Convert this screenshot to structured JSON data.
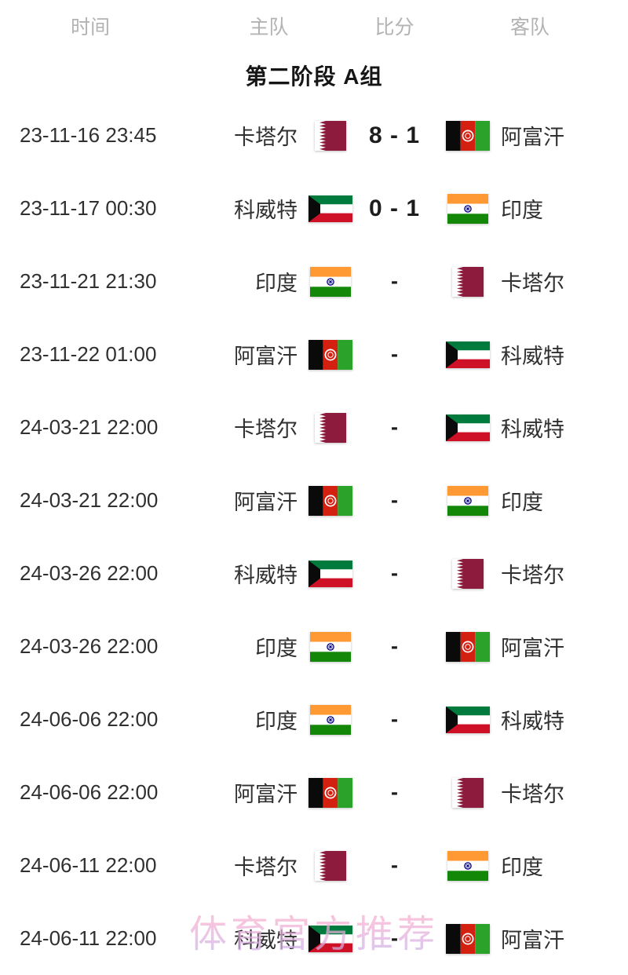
{
  "headers": {
    "time": "时间",
    "home": "主队",
    "score": "比分",
    "away": "客队"
  },
  "group_title": "第二阶段 A组",
  "watermark": "体育官方推荐",
  "matches": [
    {
      "time": "23-11-16 23:45",
      "home": "卡塔尔",
      "home_flag": "qatar",
      "score": "8 - 1",
      "away": "阿富汗",
      "away_flag": "afghanistan"
    },
    {
      "time": "23-11-17 00:30",
      "home": "科威特",
      "home_flag": "kuwait",
      "score": "0 - 1",
      "away": "印度",
      "away_flag": "india"
    },
    {
      "time": "23-11-21 21:30",
      "home": "印度",
      "home_flag": "india",
      "score": "-",
      "away": "卡塔尔",
      "away_flag": "qatar"
    },
    {
      "time": "23-11-22 01:00",
      "home": "阿富汗",
      "home_flag": "afghanistan",
      "score": "-",
      "away": "科威特",
      "away_flag": "kuwait"
    },
    {
      "time": "24-03-21 22:00",
      "home": "卡塔尔",
      "home_flag": "qatar",
      "score": "-",
      "away": "科威特",
      "away_flag": "kuwait"
    },
    {
      "time": "24-03-21 22:00",
      "home": "阿富汗",
      "home_flag": "afghanistan",
      "score": "-",
      "away": "印度",
      "away_flag": "india"
    },
    {
      "time": "24-03-26 22:00",
      "home": "科威特",
      "home_flag": "kuwait",
      "score": "-",
      "away": "卡塔尔",
      "away_flag": "qatar"
    },
    {
      "time": "24-03-26 22:00",
      "home": "印度",
      "home_flag": "india",
      "score": "-",
      "away": "阿富汗",
      "away_flag": "afghanistan"
    },
    {
      "time": "24-06-06 22:00",
      "home": "印度",
      "home_flag": "india",
      "score": "-",
      "away": "科威特",
      "away_flag": "kuwait"
    },
    {
      "time": "24-06-06 22:00",
      "home": "阿富汗",
      "home_flag": "afghanistan",
      "score": "-",
      "away": "卡塔尔",
      "away_flag": "qatar"
    },
    {
      "time": "24-06-11 22:00",
      "home": "卡塔尔",
      "home_flag": "qatar",
      "score": "-",
      "away": "印度",
      "away_flag": "india"
    },
    {
      "time": "24-06-11 22:00",
      "home": "科威特",
      "home_flag": "kuwait",
      "score": "-",
      "away": "阿富汗",
      "away_flag": "afghanistan"
    }
  ],
  "colors": {
    "header_text": "#b3b3b3",
    "title_text": "#161616",
    "row_text": "#303030",
    "score_text": "#1c1c1c",
    "watermark_top": "#f5aed2",
    "watermark_bottom": "#c6b2ee",
    "flags": {
      "qatar": {
        "maroon": "#8d1b3d",
        "white": "#ffffff"
      },
      "kuwait": {
        "green": "#007a3d",
        "white": "#ffffff",
        "red": "#ce1126",
        "black": "#0a0a0a"
      },
      "afghanistan": {
        "black": "#0a0a0a",
        "red": "#d32011",
        "green": "#2ba32b",
        "emblem": "#ffffff"
      },
      "india": {
        "saffron": "#ff9933",
        "white": "#ffffff",
        "green": "#138808",
        "chakra": "#000080"
      }
    }
  }
}
